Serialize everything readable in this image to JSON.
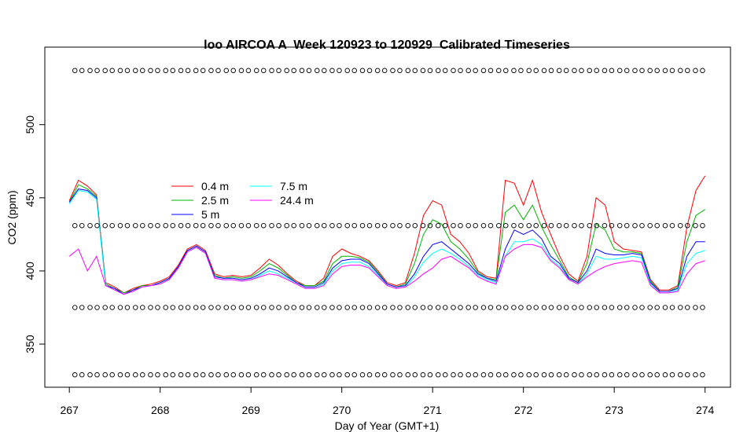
{
  "chart_data": {
    "type": "line",
    "title": "loo AIRCOA A  Week 120923 to 120929  Calibrated Timeseries",
    "xlabel": "Day of Year (GMT+1)",
    "ylabel": "CO2 (ppm)",
    "xlim": [
      266.73,
      274.28
    ],
    "ylim": [
      320.5,
      553
    ],
    "xticks": [
      267,
      268,
      269,
      270,
      271,
      272,
      273,
      274
    ],
    "yticks": [
      350,
      400,
      450,
      500
    ],
    "x": [
      267.0,
      267.1,
      267.2,
      267.3,
      267.4,
      267.5,
      267.6,
      267.7,
      267.8,
      267.9,
      268.0,
      268.1,
      268.2,
      268.3,
      268.4,
      268.5,
      268.6,
      268.7,
      268.8,
      268.9,
      269.0,
      269.1,
      269.2,
      269.3,
      269.4,
      269.5,
      269.6,
      269.7,
      269.8,
      269.9,
      270.0,
      270.1,
      270.2,
      270.3,
      270.4,
      270.5,
      270.6,
      270.7,
      270.8,
      270.9,
      271.0,
      271.1,
      271.2,
      271.3,
      271.4,
      271.5,
      271.6,
      271.7,
      271.8,
      271.9,
      272.0,
      272.1,
      272.2,
      272.3,
      272.4,
      272.5,
      272.6,
      272.7,
      272.8,
      272.9,
      273.0,
      273.1,
      273.2,
      273.3,
      273.4,
      273.5,
      273.6,
      273.7,
      273.8,
      273.9,
      274.0
    ],
    "series": [
      {
        "name": "0.4 m",
        "color": "#ff0000",
        "values": [
          448,
          462,
          458,
          452,
          392,
          389,
          385,
          388,
          390,
          391,
          393,
          396,
          404,
          415,
          418,
          414,
          398,
          396,
          397,
          396,
          397,
          402,
          408,
          404,
          398,
          393,
          390,
          390,
          395,
          410,
          415,
          412,
          410,
          407,
          400,
          392,
          390,
          392,
          412,
          438,
          448,
          445,
          425,
          420,
          412,
          400,
          396,
          395,
          462,
          460,
          445,
          462,
          440,
          425,
          410,
          398,
          393,
          410,
          450,
          445,
          420,
          415,
          414,
          413,
          394,
          387,
          387,
          390,
          430,
          455,
          465
        ]
      },
      {
        "name": "2.5 m",
        "color": "#00b400",
        "values": [
          447,
          459,
          456,
          451,
          391,
          388,
          385,
          387,
          390,
          390,
          392,
          395,
          403,
          414,
          417,
          413,
          397,
          395,
          396,
          395,
          396,
          400,
          405,
          402,
          397,
          392,
          390,
          390,
          393,
          405,
          410,
          410,
          409,
          406,
          399,
          391,
          389,
          391,
          405,
          425,
          435,
          432,
          420,
          415,
          408,
          399,
          395,
          394,
          440,
          445,
          435,
          445,
          430,
          418,
          407,
          396,
          392,
          405,
          432,
          428,
          415,
          413,
          413,
          412,
          393,
          386,
          386,
          389,
          420,
          438,
          442
        ]
      },
      {
        "name": "5 m",
        "color": "#0000ff",
        "values": [
          447,
          456,
          455,
          450,
          390,
          388,
          384,
          387,
          389,
          390,
          392,
          395,
          403,
          414,
          417,
          413,
          396,
          395,
          395,
          394,
          395,
          398,
          402,
          400,
          396,
          392,
          389,
          389,
          392,
          402,
          407,
          408,
          408,
          405,
          398,
          391,
          389,
          390,
          398,
          410,
          418,
          420,
          415,
          410,
          405,
          398,
          395,
          393,
          415,
          428,
          425,
          428,
          422,
          410,
          405,
          395,
          392,
          400,
          415,
          412,
          411,
          411,
          412,
          411,
          392,
          386,
          386,
          388,
          410,
          420,
          420
        ]
      },
      {
        "name": "7.5 m",
        "color": "#00ffff",
        "values": [
          446,
          455,
          454,
          449,
          390,
          387,
          384,
          386,
          389,
          390,
          391,
          394,
          402,
          413,
          416,
          412,
          395,
          394,
          394,
          393,
          394,
          397,
          400,
          398,
          395,
          391,
          388,
          388,
          391,
          400,
          405,
          406,
          406,
          403,
          397,
          390,
          388,
          389,
          396,
          406,
          412,
          415,
          412,
          408,
          403,
          397,
          394,
          392,
          410,
          420,
          420,
          422,
          418,
          408,
          403,
          394,
          391,
          398,
          410,
          408,
          408,
          409,
          410,
          409,
          391,
          385,
          385,
          387,
          405,
          412,
          414
        ]
      },
      {
        "name": "24.4 m",
        "color": "#ff00ff",
        "values": [
          410,
          415,
          400,
          410,
          390,
          387,
          384,
          386,
          389,
          390,
          391,
          394,
          402,
          413,
          416,
          412,
          395,
          394,
          394,
          393,
          394,
          396,
          398,
          397,
          394,
          391,
          388,
          388,
          390,
          398,
          403,
          404,
          404,
          402,
          396,
          390,
          388,
          389,
          393,
          398,
          402,
          408,
          410,
          406,
          402,
          396,
          393,
          391,
          410,
          415,
          418,
          418,
          416,
          407,
          402,
          394,
          391,
          396,
          400,
          403,
          405,
          406,
          407,
          406,
          390,
          385,
          385,
          386,
          398,
          405,
          407
        ]
      }
    ],
    "reference_levels": [
      537,
      431,
      375,
      329
    ],
    "reference_x": [
      267.1,
      267.267,
      267.433,
      267.6,
      267.767,
      267.933,
      268.1,
      268.267,
      268.433,
      268.6,
      268.767,
      268.933,
      269.1,
      269.267,
      269.433,
      269.6,
      269.767,
      269.933,
      270.1,
      270.267,
      270.433,
      270.6,
      270.767,
      270.933,
      271.1,
      271.267,
      271.433,
      271.6,
      271.767,
      271.933,
      272.1,
      272.267,
      272.433,
      272.6,
      272.767,
      272.933,
      273.1,
      273.267,
      273.433,
      273.6,
      273.767,
      273.933
    ]
  }
}
